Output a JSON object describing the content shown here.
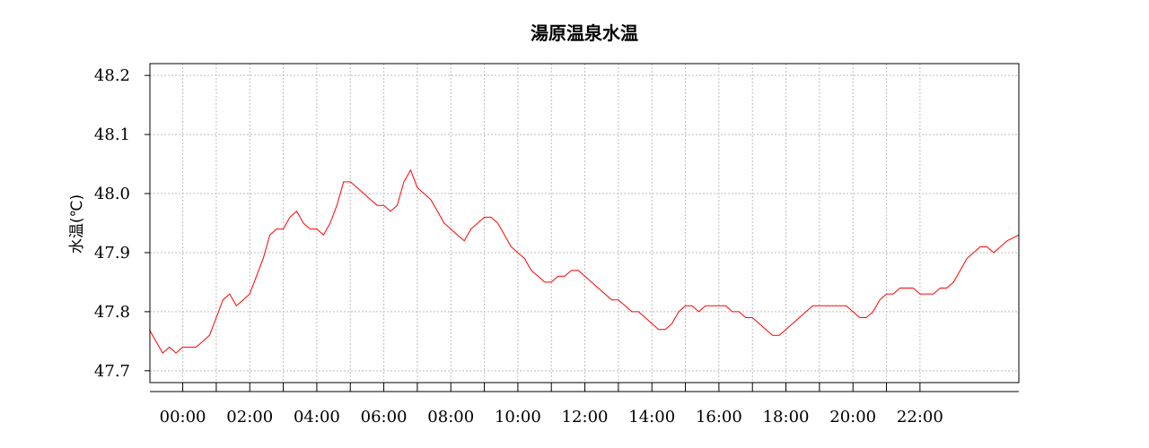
{
  "chart_data": {
    "type": "line",
    "title": "湯原温泉水温",
    "ylabel": "水温(℃)",
    "xlabel": "",
    "ylim": [
      47.68,
      48.22
    ],
    "xlim": [
      -0.98,
      24.95
    ],
    "y_ticks": [
      47.7,
      47.8,
      47.9,
      48.0,
      48.1,
      48.2
    ],
    "y_tick_labels": [
      "47.7",
      "47.8",
      "47.9",
      "48.0",
      "48.1",
      "48.2"
    ],
    "x_ticks": [
      0,
      2,
      4,
      6,
      8,
      10,
      12,
      14,
      16,
      18,
      20,
      22
    ],
    "x_tick_labels": [
      "00:00",
      "02:00",
      "04:00",
      "06:00",
      "08:00",
      "10:00",
      "12:00",
      "14:00",
      "16:00",
      "18:00",
      "20:00",
      "22:00"
    ],
    "x_minor_ticks": [
      1,
      3,
      5,
      7,
      9,
      11,
      13,
      15,
      17,
      19,
      21
    ],
    "grid": true,
    "series": [
      {
        "color": "#ff0000",
        "x": [
          -1.0,
          -0.8,
          -0.6,
          -0.4,
          -0.2,
          0.0,
          0.2,
          0.4,
          0.6,
          0.8,
          1.0,
          1.2,
          1.4,
          1.6,
          1.8,
          2.0,
          2.2,
          2.4,
          2.6,
          2.8,
          3.0,
          3.2,
          3.4,
          3.6,
          3.8,
          4.0,
          4.2,
          4.4,
          4.6,
          4.8,
          5.0,
          5.2,
          5.4,
          5.6,
          5.8,
          6.0,
          6.2,
          6.4,
          6.6,
          6.8,
          7.0,
          7.2,
          7.4,
          7.6,
          7.8,
          8.0,
          8.2,
          8.4,
          8.6,
          8.8,
          9.0,
          9.2,
          9.4,
          9.6,
          9.8,
          10.0,
          10.2,
          10.4,
          10.6,
          10.8,
          11.0,
          11.2,
          11.4,
          11.6,
          11.8,
          12.0,
          12.2,
          12.4,
          12.6,
          12.8,
          13.0,
          13.2,
          13.4,
          13.6,
          13.8,
          14.0,
          14.2,
          14.4,
          14.6,
          14.8,
          15.0,
          15.2,
          15.4,
          15.6,
          15.8,
          16.0,
          16.2,
          16.4,
          16.6,
          16.8,
          17.0,
          17.2,
          17.4,
          17.6,
          17.8,
          18.0,
          18.2,
          18.4,
          18.6,
          18.8,
          19.0,
          19.2,
          19.4,
          19.6,
          19.8,
          20.0,
          20.2,
          20.4,
          20.6,
          20.8,
          21.0,
          21.2,
          21.4,
          21.6,
          21.8,
          22.0,
          22.2,
          22.4,
          22.6,
          22.8,
          23.0,
          23.2,
          23.4,
          23.6,
          23.8,
          24.0,
          24.2,
          24.4,
          24.6,
          24.95
        ],
        "values": [
          47.77,
          47.75,
          47.73,
          47.74,
          47.73,
          47.74,
          47.74,
          47.74,
          47.75,
          47.76,
          47.79,
          47.82,
          47.83,
          47.81,
          47.82,
          47.83,
          47.86,
          47.89,
          47.93,
          47.94,
          47.94,
          47.96,
          47.97,
          47.95,
          47.94,
          47.94,
          47.93,
          47.95,
          47.98,
          48.02,
          48.02,
          48.01,
          48.0,
          47.99,
          47.98,
          47.98,
          47.97,
          47.98,
          48.02,
          48.04,
          48.01,
          48.0,
          47.99,
          47.97,
          47.95,
          47.94,
          47.93,
          47.92,
          47.94,
          47.95,
          47.96,
          47.96,
          47.95,
          47.93,
          47.91,
          47.9,
          47.89,
          47.87,
          47.86,
          47.85,
          47.85,
          47.86,
          47.86,
          47.87,
          47.87,
          47.86,
          47.85,
          47.84,
          47.83,
          47.82,
          47.82,
          47.81,
          47.8,
          47.8,
          47.79,
          47.78,
          47.77,
          47.77,
          47.78,
          47.8,
          47.81,
          47.81,
          47.8,
          47.81,
          47.81,
          47.81,
          47.81,
          47.8,
          47.8,
          47.79,
          47.79,
          47.78,
          47.77,
          47.76,
          47.76,
          47.77,
          47.78,
          47.79,
          47.8,
          47.81,
          47.81,
          47.81,
          47.81,
          47.81,
          47.81,
          47.8,
          47.79,
          47.79,
          47.8,
          47.82,
          47.83,
          47.83,
          47.84,
          47.84,
          47.84,
          47.83,
          47.83,
          47.83,
          47.84,
          47.84,
          47.85,
          47.87,
          47.89,
          47.9,
          47.91,
          47.91,
          47.9,
          47.91,
          47.92,
          47.93
        ]
      }
    ]
  }
}
